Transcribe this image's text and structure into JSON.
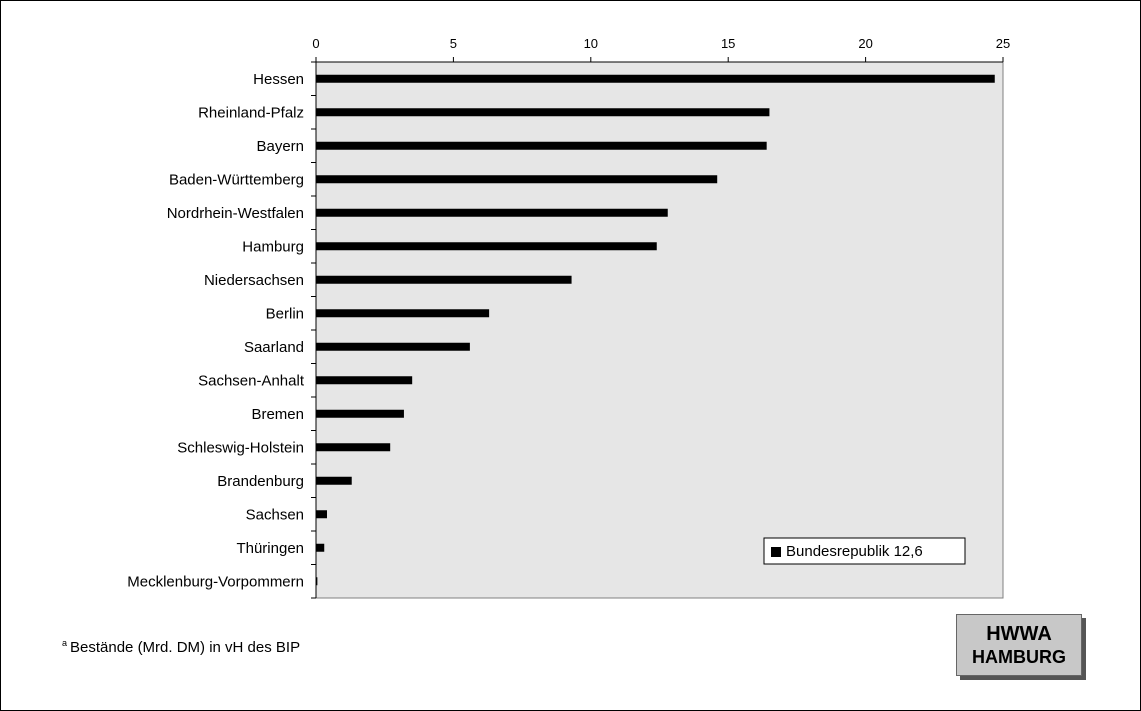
{
  "chart_data": {
    "type": "bar",
    "orientation": "horizontal",
    "categories": [
      "Hessen",
      "Rheinland-Pfalz",
      "Bayern",
      "Baden-Württemberg",
      "Nordrhein-Westfalen",
      "Hamburg",
      "Niedersachsen",
      "Berlin",
      "Saarland",
      "Sachsen-Anhalt",
      "Bremen",
      "Schleswig-Holstein",
      "Brandenburg",
      "Sachsen",
      "Thüringen",
      "Mecklenburg-Vorpommern"
    ],
    "values": [
      24.7,
      16.5,
      16.4,
      14.6,
      12.8,
      12.4,
      9.3,
      6.3,
      5.6,
      3.5,
      3.2,
      2.7,
      1.3,
      0.4,
      0.3,
      0.05
    ],
    "xlim": [
      0,
      25
    ],
    "xticks": [
      "0",
      "5",
      "10",
      "15",
      "20",
      "25"
    ],
    "xlabel": "",
    "ylabel": "",
    "title": "",
    "legend": {
      "text": "Bundesrepublik 12,6",
      "placement": "bottom-right"
    },
    "grid": false,
    "colors": {
      "bar": "#000000",
      "plot_background": "#e6e6e6"
    }
  },
  "footnote": {
    "marker": "a",
    "text": "Bestände (Mrd. DM) in vH des BIP"
  },
  "logo": {
    "line1": "HWWA",
    "line2": "HAMBURG"
  }
}
